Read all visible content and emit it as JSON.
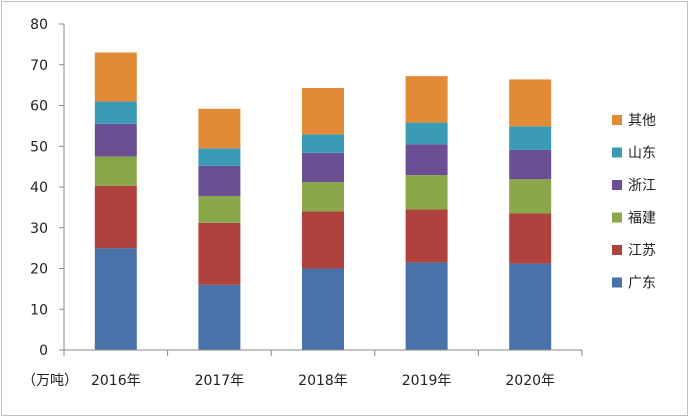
{
  "chart_data": {
    "type": "bar",
    "stacked": true,
    "title": "",
    "ylabel": "（万吨）",
    "xlabel": "",
    "ylim": [
      0,
      80
    ],
    "yticks": [
      0,
      10,
      20,
      30,
      40,
      50,
      60,
      70,
      80
    ],
    "grid": false,
    "legend_position": "right",
    "categories": [
      "2016年",
      "2017年",
      "2018年",
      "2019年",
      "2020年"
    ],
    "series": [
      {
        "name": "广东",
        "color": "#4a72a8",
        "values": [
          25,
          16,
          20,
          21.5,
          21.2
        ]
      },
      {
        "name": "江苏",
        "color": "#b0423e",
        "values": [
          15.3,
          15.2,
          14,
          13,
          12.3
        ]
      },
      {
        "name": "福建",
        "color": "#8aa84a",
        "values": [
          7.2,
          6.6,
          7.2,
          8.4,
          8.4
        ]
      },
      {
        "name": "浙江",
        "color": "#6b4f95",
        "values": [
          8,
          7.4,
          7.2,
          7.6,
          7.2
        ]
      },
      {
        "name": "山东",
        "color": "#3b9bb5",
        "values": [
          5.5,
          4.3,
          4.5,
          5.3,
          5.8
        ]
      },
      {
        "name": "其他",
        "color": "#e38a37",
        "values": [
          12,
          9.7,
          11.4,
          11.4,
          11.5
        ]
      }
    ]
  }
}
